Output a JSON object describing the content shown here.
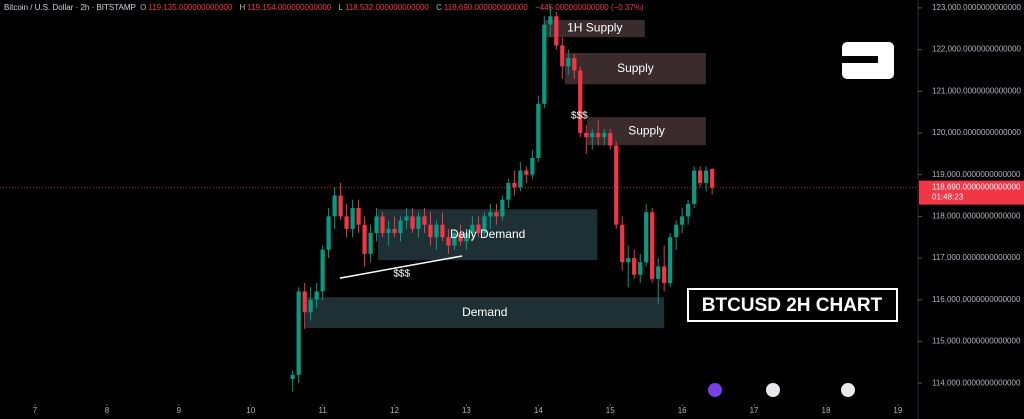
{
  "header": {
    "symbol": "Bitcoin / U.S. Dollar · 2h · BITSTAMP",
    "o_key": "O",
    "o": "119,135.000000000000",
    "h_key": "H",
    "h": "119,154.000000000000",
    "l_key": "L",
    "l": "118,532.000000000000",
    "c_key": "C",
    "c": "118,690.000000000000",
    "change": "−445.000000000000 (−0.37%)"
  },
  "chart_data": {
    "type": "candlestick",
    "title": "BTCUSD 2H CHART",
    "up_color": "#089981",
    "down_color": "#f23645",
    "xlim": [
      6.513,
      19.28
    ],
    "xticks": [
      7,
      8,
      9,
      10,
      11,
      12,
      13,
      14,
      15,
      16,
      17,
      18,
      19
    ],
    "ylim": [
      113140,
      123190
    ],
    "yticks": [
      {
        "value": 114000,
        "label": "114,000.0000000000000"
      },
      {
        "value": 115000,
        "label": "115,000.0000000000000"
      },
      {
        "value": 116000,
        "label": "116,000.0000000000000"
      },
      {
        "value": 117000,
        "label": "117,000.0000000000000"
      },
      {
        "value": 118000,
        "label": "118,000.0000000000000"
      },
      {
        "value": 119000,
        "label": "119,000.0000000000000"
      },
      {
        "value": 120000,
        "label": "120,000.0000000000000"
      },
      {
        "value": 121000,
        "label": "121,000.0000000000000"
      },
      {
        "value": 122000,
        "label": "122,000.0000000000000"
      },
      {
        "value": 123000,
        "label": "123,000.0000000000000"
      }
    ],
    "grid": false,
    "x": [
      10.583,
      10.667,
      10.75,
      10.833,
      10.917,
      11.0,
      11.083,
      11.167,
      11.25,
      11.333,
      11.417,
      11.5,
      11.583,
      11.667,
      11.75,
      11.833,
      11.917,
      12.0,
      12.083,
      12.167,
      12.25,
      12.333,
      12.417,
      12.5,
      12.583,
      12.667,
      12.75,
      12.833,
      12.917,
      13.0,
      13.083,
      13.167,
      13.25,
      13.333,
      13.417,
      13.5,
      13.583,
      13.667,
      13.75,
      13.833,
      13.917,
      14.0,
      14.083,
      14.167,
      14.25,
      14.333,
      14.417,
      14.5,
      14.583,
      14.667,
      14.75,
      14.833,
      14.917,
      15.0,
      15.083,
      15.167,
      15.25,
      15.333,
      15.417,
      15.5,
      15.583,
      15.667,
      15.75,
      15.833,
      15.917,
      16.0,
      16.083,
      16.167,
      16.25,
      16.333,
      16.417
    ],
    "open": [
      114100,
      114200,
      116200,
      115700,
      116000,
      116200,
      117200,
      118000,
      118500,
      118000,
      117700,
      118200,
      117800,
      117100,
      117600,
      118000,
      117600,
      117700,
      117600,
      117900,
      118000,
      117700,
      118000,
      117800,
      117500,
      117800,
      117500,
      117300,
      117600,
      117400,
      117600,
      117800,
      117600,
      118000,
      118100,
      118000,
      118400,
      118800,
      118700,
      119100,
      119000,
      119400,
      120700,
      122600,
      122800,
      122100,
      121600,
      121800,
      121500,
      120000,
      119900,
      120000,
      119900,
      120000,
      119700,
      117800,
      116900,
      117000,
      116600,
      116900,
      118100,
      116500,
      116800,
      116400,
      117500,
      117800,
      118000,
      118300,
      119100,
      118800,
      119135
    ],
    "high": [
      114300,
      116300,
      116400,
      116300,
      116400,
      117300,
      118200,
      118700,
      118800,
      118300,
      118400,
      118400,
      118000,
      117800,
      118200,
      118100,
      117900,
      118000,
      118000,
      118200,
      118200,
      118100,
      118200,
      118100,
      117900,
      118100,
      117700,
      117700,
      117800,
      117700,
      118000,
      118000,
      118100,
      118300,
      118300,
      118500,
      118900,
      119100,
      119300,
      119200,
      119600,
      120900,
      122800,
      123050,
      122900,
      122300,
      122000,
      121900,
      121600,
      120200,
      120100,
      120300,
      120100,
      120100,
      119800,
      118000,
      117300,
      117200,
      117100,
      118300,
      118200,
      117000,
      117300,
      117600,
      117900,
      118200,
      118400,
      119200,
      119200,
      119200,
      119154
    ],
    "low": [
      113800,
      114000,
      115300,
      115500,
      115800,
      116000,
      117000,
      117700,
      117900,
      117500,
      117500,
      117600,
      116800,
      116900,
      117400,
      117500,
      117300,
      117500,
      117400,
      117700,
      117600,
      117500,
      117600,
      117300,
      117200,
      117400,
      117100,
      117200,
      117300,
      117200,
      117400,
      117500,
      117500,
      117700,
      117800,
      117900,
      118200,
      118500,
      118600,
      118800,
      118900,
      119300,
      120600,
      122300,
      122000,
      121300,
      121400,
      121300,
      119900,
      119500,
      119600,
      119700,
      119700,
      119600,
      117700,
      116700,
      116300,
      116500,
      116400,
      116800,
      116400,
      115900,
      116200,
      116300,
      117200,
      117600,
      117800,
      118200,
      118700,
      118600,
      118532
    ],
    "close": [
      114200,
      116200,
      115700,
      116000,
      116200,
      117200,
      118000,
      118500,
      118000,
      117700,
      118200,
      117800,
      117100,
      117600,
      118000,
      117600,
      117700,
      117600,
      117900,
      118000,
      117700,
      118000,
      117800,
      117500,
      117800,
      117500,
      117300,
      117600,
      117400,
      117600,
      117800,
      117600,
      118000,
      118100,
      118000,
      118400,
      118800,
      118700,
      119100,
      119000,
      119400,
      120700,
      122600,
      122800,
      122100,
      121600,
      121800,
      121500,
      120000,
      119900,
      120000,
      119900,
      120000,
      119700,
      117800,
      116900,
      117000,
      116600,
      116900,
      118100,
      116500,
      116800,
      116400,
      117500,
      117800,
      118000,
      118300,
      119100,
      118800,
      119100,
      118690
    ],
    "zones": [
      {
        "label": "1H Supply",
        "from": 14.09,
        "to": 15.48,
        "high": 122710,
        "low": 122300,
        "color": "#3a2c2c"
      },
      {
        "label": "Supply",
        "from": 14.37,
        "to": 16.33,
        "high": 121920,
        "low": 121170,
        "color": "#3a2c2c"
      },
      {
        "label": "Supply",
        "from": 14.68,
        "to": 16.33,
        "high": 120380,
        "low": 119710,
        "color": "#3a2c2c"
      },
      {
        "label": "Daily Demand",
        "from": 11.77,
        "to": 14.82,
        "high": 118170,
        "low": 116950,
        "color": "#1f3035"
      },
      {
        "label": "Demand",
        "from": 10.76,
        "to": 15.75,
        "high": 116060,
        "low": 115320,
        "color": "#1f3035"
      }
    ],
    "trendline": {
      "x": [
        11.24,
        12.94
      ],
      "y": [
        116520,
        117050
      ]
    },
    "annotations": [
      {
        "text": "$$$",
        "x": 12.1,
        "y": 116620
      },
      {
        "text": "$$$",
        "x": 14.57,
        "y": 120410
      }
    ],
    "last_price": {
      "value": 118690,
      "label": "118,690.0000000000000"
    },
    "countdown": "01:48:23"
  }
}
